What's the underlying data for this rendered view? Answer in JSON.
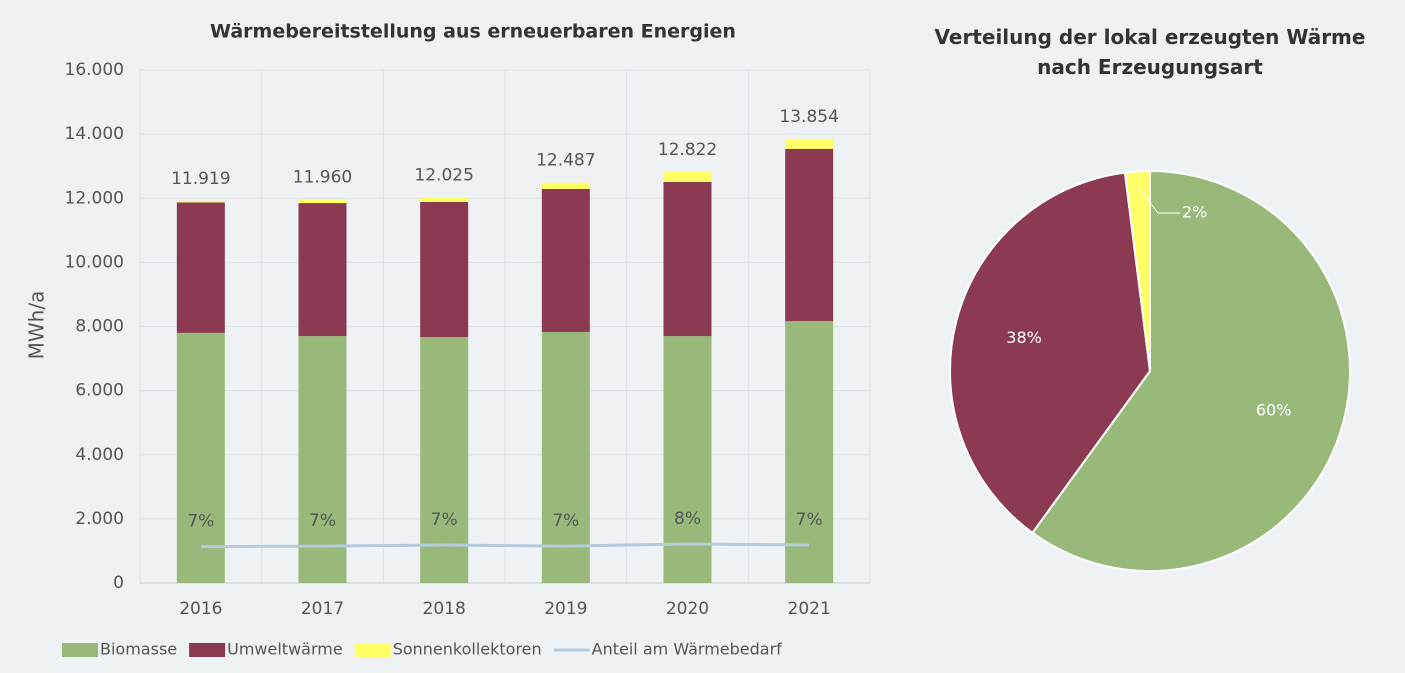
{
  "chart_data": [
    {
      "type": "bar",
      "stacked": true,
      "title": "Wärmebereitstellung aus erneuerbaren Energien",
      "y_label": "MWh/a",
      "categories": [
        "2016",
        "2017",
        "2018",
        "2019",
        "2020",
        "2021"
      ],
      "ylim": [
        0,
        16000
      ],
      "yticks": [
        0,
        {
          "value": 2000,
          "label": "2.000"
        },
        {
          "value": 4000,
          "label": "4.000"
        },
        {
          "value": 6000,
          "label": "6.000"
        },
        {
          "value": 8000,
          "label": "8.000"
        },
        {
          "value": 10000,
          "label": "10.000"
        },
        {
          "value": 12000,
          "label": "12.000"
        },
        {
          "value": 14000,
          "label": "14.000"
        },
        {
          "value": 16000,
          "label": "16.000"
        }
      ],
      "y2lim": [
        0,
        100
      ],
      "grid": true,
      "legend": "bottom",
      "series": [
        {
          "name": "Biomasse",
          "type": "bar",
          "color": "#98b97a",
          "values": [
            7800,
            7700,
            7670,
            7830,
            7700,
            8170
          ]
        },
        {
          "name": "Umweltwärme",
          "type": "bar",
          "color": "#8b3a52",
          "values": [
            4070,
            4150,
            4215,
            4460,
            4810,
            5370
          ]
        },
        {
          "name": "Sonnenkollektoren",
          "type": "bar",
          "color": "#ffff66",
          "values": [
            49,
            110,
            140,
            197,
            312,
            314
          ]
        },
        {
          "name": "Anteil am Wärmebedarf",
          "type": "line",
          "axis": "y2",
          "color": "#b4cbdc",
          "values": [
            7.1,
            7.2,
            7.4,
            7.2,
            7.6,
            7.4
          ],
          "value_labels": [
            "7%",
            "7%",
            "7%",
            "7%",
            "8%",
            "7%"
          ]
        }
      ],
      "totals": {
        "values": [
          11919,
          11960,
          12025,
          12487,
          12822,
          13854
        ],
        "value_labels": [
          "11.919",
          "11.960",
          "12.025",
          "12.487",
          "12.822",
          "13.854"
        ]
      }
    },
    {
      "type": "pie",
      "title": "Verteilung der lokal erzeugten Wärme nach Erzeugungsart",
      "categories": [
        "Biomasse",
        "Umweltwärme",
        "Sonnenkollektoren"
      ],
      "values": [
        60,
        38,
        2
      ],
      "value_labels": [
        "60%",
        "38%",
        "2%"
      ],
      "colors": [
        "#98b97a",
        "#8b3a52",
        "#ffff66"
      ]
    }
  ]
}
